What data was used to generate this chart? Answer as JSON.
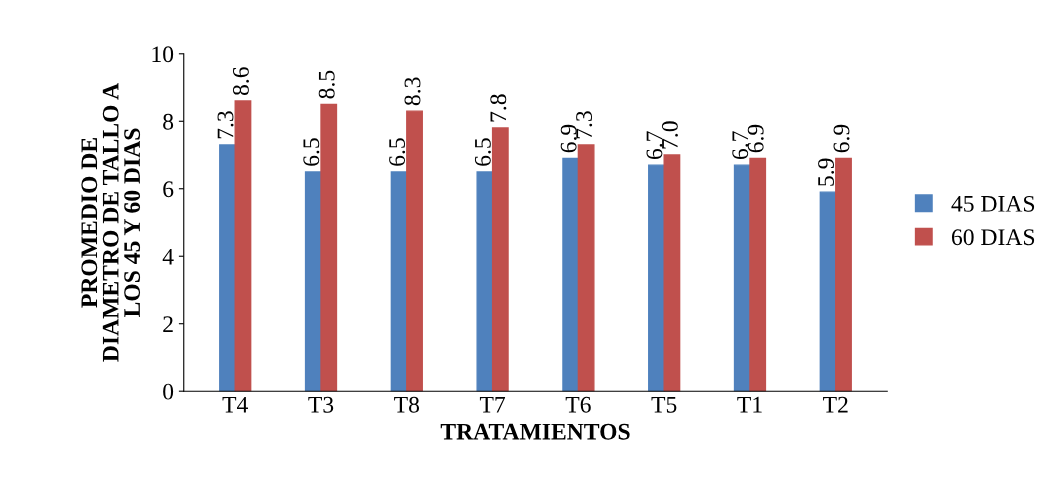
{
  "chart_data": {
    "type": "bar",
    "xlabel": "TRATAMIENTOS",
    "ylabel": "PROMEDIO DE\nDIAMETRO DE TALLO A\nLOS 45 Y 60 DIAS",
    "categories": [
      "T4",
      "T3",
      "T8",
      "T7",
      "T6",
      "T5",
      "T1",
      "T2"
    ],
    "series": [
      {
        "name": "45 DIAS",
        "color": "#4f81bd",
        "values": [
          7.3,
          6.5,
          6.5,
          6.5,
          6.9,
          6.7,
          6.7,
          5.9
        ],
        "value_labels": [
          "7.3",
          "6.5",
          "6.5",
          "6.5",
          "6.9",
          "6.7",
          "6.7",
          "5.9"
        ]
      },
      {
        "name": "60 DIAS",
        "color": "#c0504d",
        "values": [
          8.6,
          8.5,
          8.3,
          7.8,
          7.3,
          7.0,
          6.9,
          6.9
        ],
        "value_labels": [
          "8.6",
          "8.5",
          "8.3",
          "7.8",
          "7.3",
          "7.0",
          "6.9",
          "6.9"
        ]
      }
    ],
    "ylim": [
      0,
      10
    ],
    "yticks": [
      0,
      2,
      4,
      6,
      8,
      10
    ],
    "grid": false,
    "legend": "right"
  }
}
